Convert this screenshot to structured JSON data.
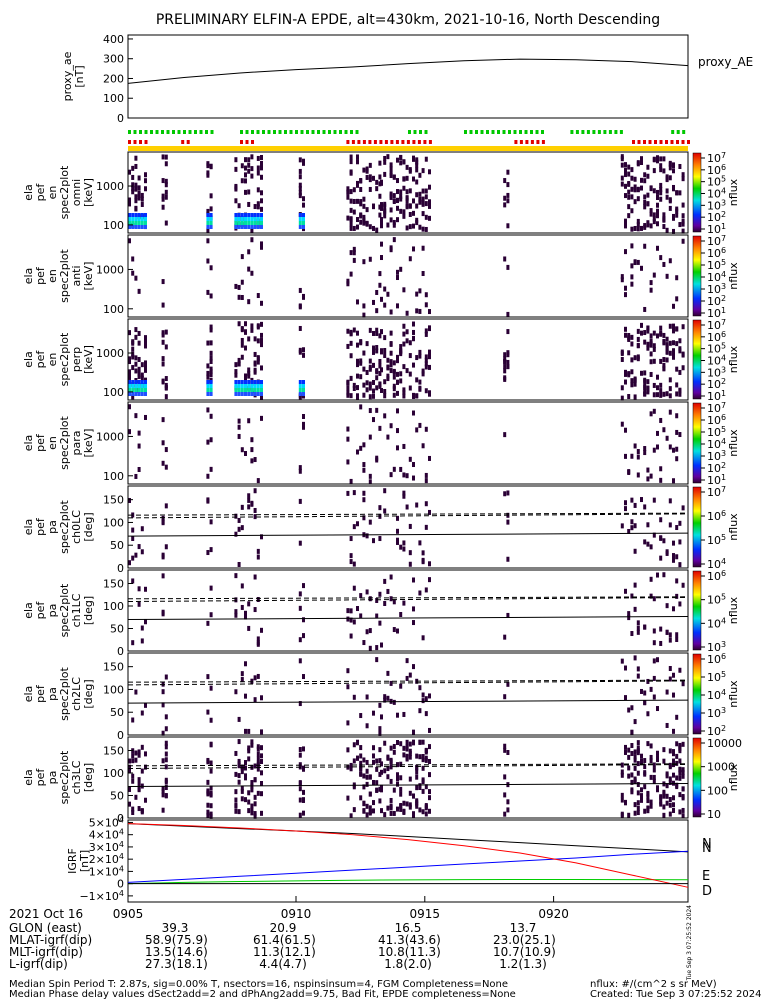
{
  "title": "PRELIMINARY ELFIN-A EPDE, alt=430km, 2021-10-16, North Descending",
  "time_axis": {
    "tick_labels": [
      "0905",
      "0910",
      "0915",
      "0920"
    ],
    "date_label": "2021 Oct 16"
  },
  "ephemeris": {
    "rows": [
      {
        "label": "GLON (east)",
        "values": [
          "39.3",
          "20.9",
          "16.5",
          "13.7"
        ]
      },
      {
        "label": "MLAT-igrf(dip)",
        "values": [
          "58.9(75.9)",
          "61.4(61.5)",
          "41.3(43.6)",
          "23.0(25.1)"
        ]
      },
      {
        "label": "MLT-igrf(dip)",
        "values": [
          "13.5(14.6)",
          "11.3(12.1)",
          "10.8(11.3)",
          "10.7(10.9)"
        ]
      },
      {
        "label": "L-igrf(dip)",
        "values": [
          "27.3(18.1)",
          "4.4(4.7)",
          "1.8(2.0)",
          "1.2(1.3)"
        ]
      }
    ]
  },
  "footer": {
    "line1": "Median Spin Period T: 2.87s, sig=0.00% T, nsectors=16, nspinsinsum=4, FGM Completeness=None",
    "line2": "Median Phase delay values dSect2add=2 and dPhAng2add=9.75, Bad Fit, EPDE completeness=None",
    "units": "nflux: #/(cm^2 s sr MeV)",
    "created": "Created: Tue Sep  3 07:25:52 2024",
    "side_stamp": "Tue Sep  3 07:25:52 2024"
  },
  "chart_data": [
    {
      "type": "line",
      "panel": "proxy_ae",
      "ylabel_lines": [
        "proxy_ae",
        "[nT]"
      ],
      "legend": "proxy_AE",
      "yticks": [
        "400",
        "300",
        "200",
        "100",
        "0"
      ],
      "ylim": [
        0,
        420
      ],
      "x": [
        0,
        0.1,
        0.2,
        0.3,
        0.4,
        0.5,
        0.6,
        0.7,
        0.8,
        0.9,
        1.0
      ],
      "values": [
        175,
        205,
        228,
        245,
        258,
        275,
        290,
        298,
        295,
        285,
        265
      ]
    },
    {
      "type": "bar",
      "panel": "quality_bars",
      "series": [
        {
          "name": "green",
          "color": "#00c800",
          "segments": [
            [
              0.0,
              0.15
            ],
            [
              0.2,
              0.41
            ],
            [
              0.5,
              0.53
            ],
            [
              0.6,
              0.74
            ],
            [
              0.79,
              0.88
            ],
            [
              0.97,
              0.99
            ]
          ]
        },
        {
          "name": "red",
          "color": "#e00000",
          "segments": [
            [
              0.0,
              0.03
            ],
            [
              0.095,
              0.105
            ],
            [
              0.2,
              0.22
            ],
            [
              0.39,
              0.54
            ],
            [
              0.69,
              0.74
            ],
            [
              0.9,
              1.0
            ]
          ]
        },
        {
          "name": "yellow",
          "color": "#ffd000",
          "segments": [
            [
              0.0,
              1.0
            ]
          ]
        }
      ]
    },
    {
      "type": "heatmap",
      "panel": "spec2plot_omni",
      "ylabel_lines": [
        "ela",
        "pef",
        "en",
        "spec2plot",
        "omni",
        "[keV]"
      ],
      "yticks": [
        "1000",
        "100"
      ],
      "colorbar": {
        "label": "nflux",
        "ticks": [
          "10^7",
          "10^6",
          "10^5",
          "10^4",
          "10^3",
          "10^2",
          "10^1"
        ]
      }
    },
    {
      "type": "heatmap",
      "panel": "spec2plot_anti",
      "ylabel_lines": [
        "ela",
        "pef",
        "en",
        "spec2plot",
        "anti",
        "[keV]"
      ],
      "yticks": [
        "1000",
        "100"
      ],
      "colorbar": {
        "label": "nflux",
        "ticks": [
          "10^7",
          "10^6",
          "10^5",
          "10^4",
          "10^3",
          "10^2",
          "10^1"
        ]
      }
    },
    {
      "type": "heatmap",
      "panel": "spec2plot_perp",
      "ylabel_lines": [
        "ela",
        "pef",
        "en",
        "spec2plot",
        "perp",
        "[keV]"
      ],
      "yticks": [
        "1000",
        "100"
      ],
      "colorbar": {
        "label": "nflux",
        "ticks": [
          "10^7",
          "10^6",
          "10^5",
          "10^4",
          "10^3",
          "10^2",
          "10^1"
        ]
      }
    },
    {
      "type": "heatmap",
      "panel": "spec2plot_para",
      "ylabel_lines": [
        "ela",
        "pef",
        "en",
        "spec2plot",
        "para",
        "[keV]"
      ],
      "yticks": [
        "1000",
        "100"
      ],
      "colorbar": {
        "label": "nflux",
        "ticks": [
          "10^7",
          "10^6",
          "10^5",
          "10^4",
          "10^3",
          "10^2",
          "10^1"
        ]
      }
    },
    {
      "type": "heatmap",
      "panel": "spec2plot_ch0LC",
      "ylabel_lines": [
        "ela",
        "pef",
        "pa",
        "spec2plot",
        "ch0LC",
        "[deg]"
      ],
      "yticks": [
        "150",
        "100",
        "50",
        "0"
      ],
      "colorbar": {
        "label": "nflux",
        "ticks": [
          "10^7",
          "10^6",
          "10^5",
          "10^4"
        ]
      }
    },
    {
      "type": "heatmap",
      "panel": "spec2plot_ch1LC",
      "ylabel_lines": [
        "ela",
        "pef",
        "pa",
        "spec2plot",
        "ch1LC",
        "[deg]"
      ],
      "yticks": [
        "150",
        "100",
        "50",
        "0"
      ],
      "colorbar": {
        "label": "nflux",
        "ticks": [
          "10^6",
          "10^5",
          "10^4",
          "10^3"
        ]
      }
    },
    {
      "type": "heatmap",
      "panel": "spec2plot_ch2LC",
      "ylabel_lines": [
        "ela",
        "pef",
        "pa",
        "spec2plot",
        "ch2LC",
        "[deg]"
      ],
      "yticks": [
        "150",
        "100",
        "50",
        "0"
      ],
      "colorbar": {
        "label": "nflux",
        "ticks": [
          "10^6",
          "10^5",
          "10^4",
          "10^3",
          "10^2"
        ]
      }
    },
    {
      "type": "heatmap",
      "panel": "spec2plot_ch3LC",
      "ylabel_lines": [
        "ela",
        "pef",
        "pa",
        "spec2plot",
        "ch3LC",
        "[deg]"
      ],
      "yticks": [
        "150",
        "100",
        "50",
        "0"
      ],
      "colorbar": {
        "label": "nflux",
        "ticks": [
          "10000",
          "1000",
          "100",
          "10"
        ]
      }
    },
    {
      "type": "line",
      "panel": "igrf",
      "ylabel_lines": [
        "IGRF",
        "[nT]"
      ],
      "yticks": [
        "5×10^4",
        "4×10^4",
        "3×10^4",
        "2×10^4",
        "1×10^4",
        "0",
        "−1×10^4"
      ],
      "ylim": [
        -15000,
        52000
      ],
      "x": [
        0,
        0.1,
        0.2,
        0.3,
        0.4,
        0.5,
        0.6,
        0.7,
        0.8,
        0.9,
        1.0
      ],
      "series": [
        {
          "name": "N",
          "color": "#000000",
          "values": [
            49000,
            47000,
            45000,
            43000,
            41000,
            38500,
            36000,
            33500,
            31000,
            28500,
            26000
          ]
        },
        {
          "name": "N",
          "color": "#0000ff",
          "values": [
            1000,
            3500,
            6000,
            8500,
            11000,
            13500,
            16000,
            18500,
            21000,
            24000,
            26500
          ]
        },
        {
          "name": "E",
          "color": "#00cc00",
          "values": [
            0,
            1000,
            1700,
            2300,
            2800,
            3100,
            3300,
            3400,
            3400,
            3300,
            3200
          ]
        },
        {
          "name": "D",
          "color": "#ff0000",
          "values": [
            49000,
            47500,
            45500,
            43000,
            40000,
            36000,
            31000,
            25000,
            17000,
            7000,
            -3000
          ]
        },
        {
          "name": "",
          "color": "#000000",
          "values": [
            0,
            0,
            0,
            0,
            0,
            0,
            0,
            0,
            0,
            0,
            0
          ]
        }
      ],
      "legend_letters": [
        "N",
        "N",
        "E",
        "D"
      ]
    }
  ]
}
